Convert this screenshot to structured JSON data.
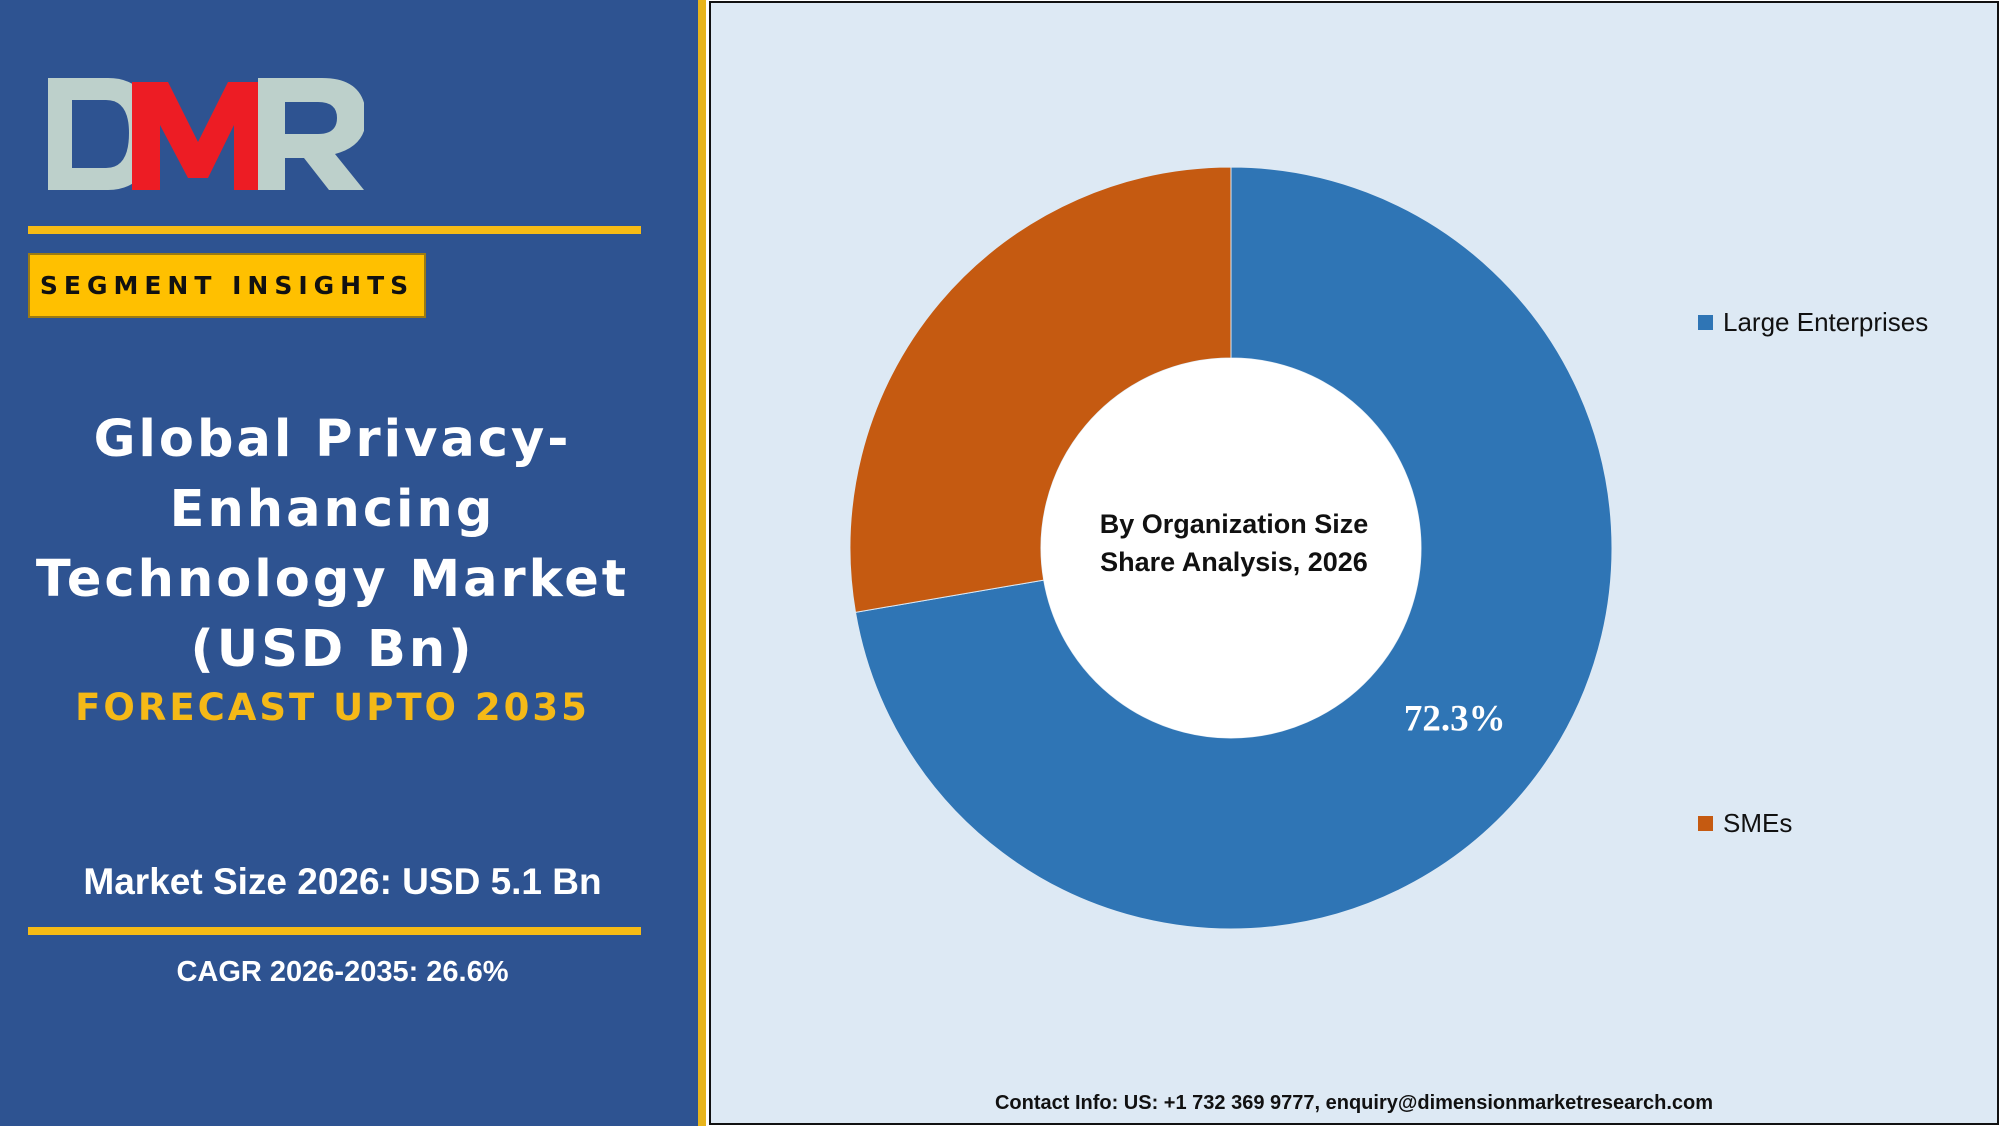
{
  "logo": {
    "text": "DMR",
    "colors": [
      "#e8141d",
      "#b7cbc8"
    ]
  },
  "header": {
    "segment_badge": "SEGMENT INSIGHTS",
    "market_title_lines": [
      "Global Privacy-",
      "Enhancing",
      "Technology Market",
      "(USD Bn)"
    ],
    "forecast": "FORECAST UPTO 2035",
    "market_size": "Market Size 2026: USD 5.1 Bn",
    "cagr": "CAGR 2026-2035: 26.6%"
  },
  "chart_data": {
    "type": "pie",
    "subtype": "donut",
    "title_lines": [
      "By Organization Size",
      "Share Analysis, 2026"
    ],
    "categories": [
      "Large Enterprises",
      "SMEs"
    ],
    "values": [
      72.3,
      27.7
    ],
    "data_labels": [
      "72.3%",
      ""
    ],
    "legend": {
      "placement": "right",
      "entries": [
        "Large Enterprises",
        "SMEs"
      ]
    },
    "colors": [
      "#2f75b5",
      "#c55a11"
    ]
  },
  "footer": {
    "contact": "Contact Info: US: +1 732 369 9777, enquiry@dimensionmarketresearch.com"
  },
  "theme": {
    "left_panel": "#2e5391",
    "gold": "#f6bb16",
    "chart_background": "#dde9f4"
  }
}
